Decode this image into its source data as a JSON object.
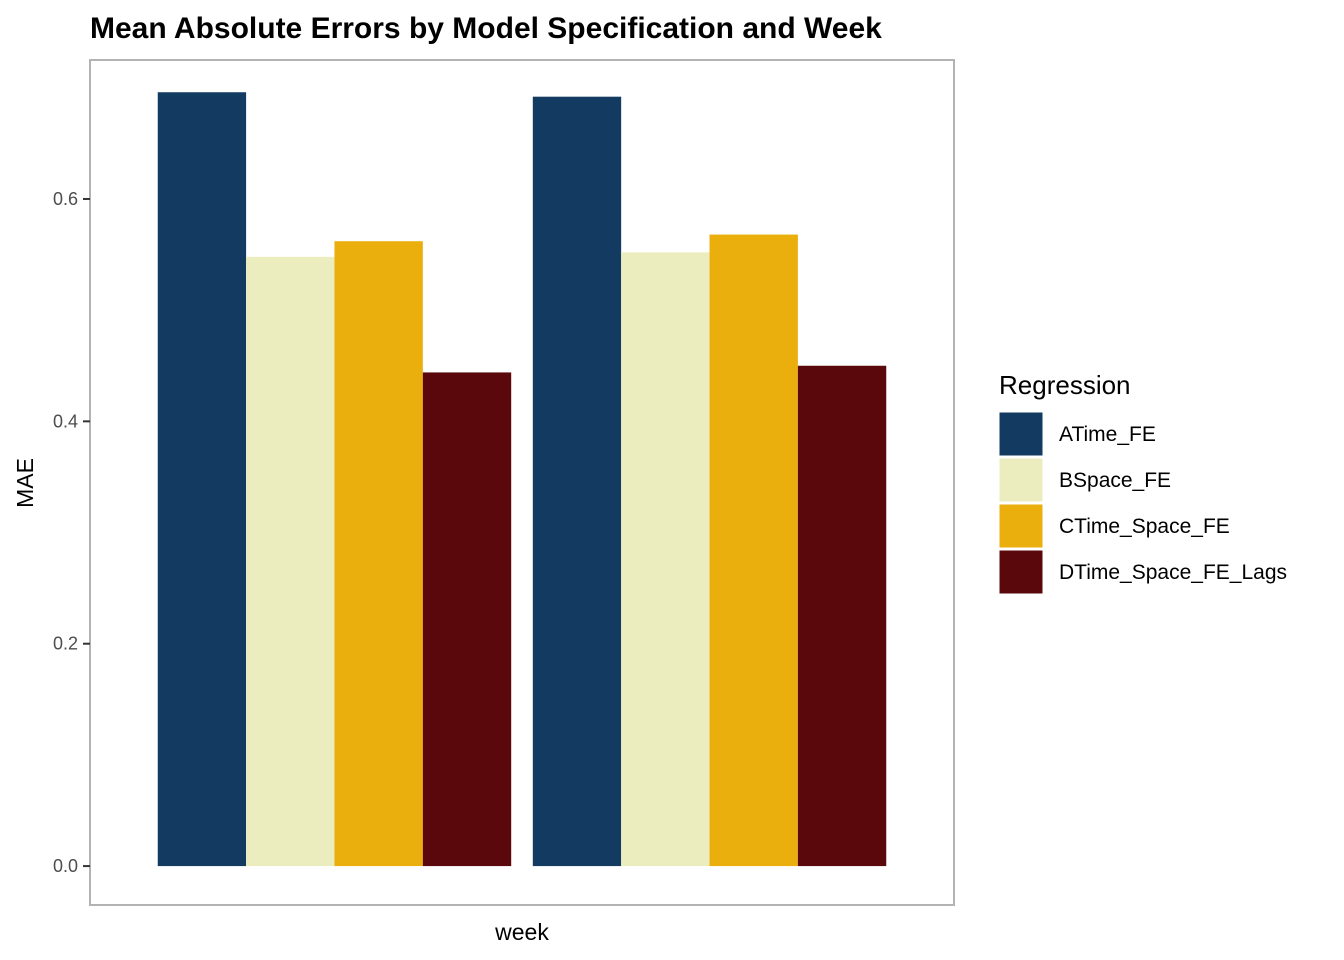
{
  "chart_data": {
    "type": "bar",
    "title": "Mean Absolute Errors by Model Specification and Week",
    "xlabel": "week",
    "ylabel": "MAE",
    "ylim": [
      -0.035,
      0.725
    ],
    "yticks": [
      0.0,
      0.2,
      0.4,
      0.6
    ],
    "ytick_labels": [
      "0.0",
      "0.2",
      "0.4",
      "0.6"
    ],
    "grid": false,
    "legend_title": "Regression",
    "legend_position": "right",
    "groups": 2,
    "series": [
      {
        "name": "ATime_FE",
        "color": "#133b62",
        "values": [
          0.696,
          0.692
        ]
      },
      {
        "name": "BSpace_FE",
        "color": "#ebedbf",
        "values": [
          0.548,
          0.552
        ]
      },
      {
        "name": "CTime_Space_FE",
        "color": "#eaae0d",
        "values": [
          0.562,
          0.568
        ]
      },
      {
        "name": "DTime_Space_FE_Lags",
        "color": "#5a080c",
        "values": [
          0.444,
          0.45
        ]
      }
    ]
  }
}
